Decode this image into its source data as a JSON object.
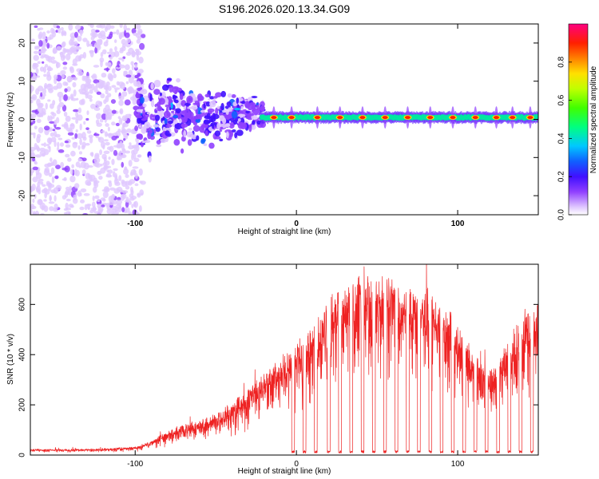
{
  "title": "S196.2026.020.13.34.G09",
  "chart_data": [
    {
      "type": "heatmap",
      "name": "spectrogram",
      "xlabel": "Height of straight line (km)",
      "ylabel": "Frequency (Hz)",
      "xlim": [
        -165,
        150
      ],
      "ylim": [
        -25,
        25
      ],
      "xticks": [
        -100,
        0,
        100
      ],
      "yticks": [
        -20,
        -10,
        0,
        10,
        20
      ],
      "colorbar": {
        "label": "Normalized spectral amplitude",
        "range": [
          0,
          1
        ],
        "ticks": [
          "0.0",
          "0.2",
          "0.4",
          "0.6",
          "0.8"
        ],
        "colors": [
          "#ffffff",
          "#e0c8ff",
          "#9040ff",
          "#4010ff",
          "#1060ff",
          "#00c8ff",
          "#00ff80",
          "#40ff00",
          "#c0ff00",
          "#ffe000",
          "#ff8000",
          "#ff2000",
          "#ff0080"
        ]
      },
      "features": {
        "carrier_center_hz": 0.5,
        "carrier_onset_km": -22,
        "noise_region_km": [
          -165,
          -100
        ],
        "peak_spots_km": [
          -14,
          -3,
          13,
          27,
          41,
          55,
          69,
          83,
          97,
          111,
          124,
          134,
          145
        ]
      }
    },
    {
      "type": "line",
      "name": "snr",
      "xlabel": "Height of straight line (km)",
      "ylabel": "SNR (10 * v/v)",
      "xlim": [
        -165,
        150
      ],
      "ylim": [
        0,
        760
      ],
      "xticks": [
        -100,
        0,
        100
      ],
      "yticks": [
        0,
        200,
        400,
        600
      ],
      "color": "#ee2222",
      "envelope": {
        "x": [
          -165,
          -140,
          -115,
          -100,
          -90,
          -80,
          -70,
          -60,
          -50,
          -40,
          -30,
          -20,
          -12,
          -5,
          5,
          15,
          22,
          30,
          40,
          50,
          60,
          70,
          80,
          90,
          95,
          100,
          105,
          110,
          115,
          120,
          125,
          130,
          135,
          140,
          145,
          150
        ],
        "y": [
          22,
          22,
          25,
          30,
          50,
          90,
          110,
          125,
          150,
          190,
          240,
          300,
          340,
          380,
          430,
          520,
          580,
          620,
          640,
          650,
          630,
          620,
          610,
          550,
          520,
          470,
          420,
          370,
          330,
          310,
          330,
          400,
          460,
          480,
          520,
          560
        ]
      },
      "dropouts_km": [
        -2,
        5,
        12,
        20,
        27,
        34,
        41,
        48,
        55,
        62,
        69,
        76,
        83,
        90,
        97,
        104,
        111,
        118,
        125,
        132,
        139,
        146
      ]
    }
  ]
}
